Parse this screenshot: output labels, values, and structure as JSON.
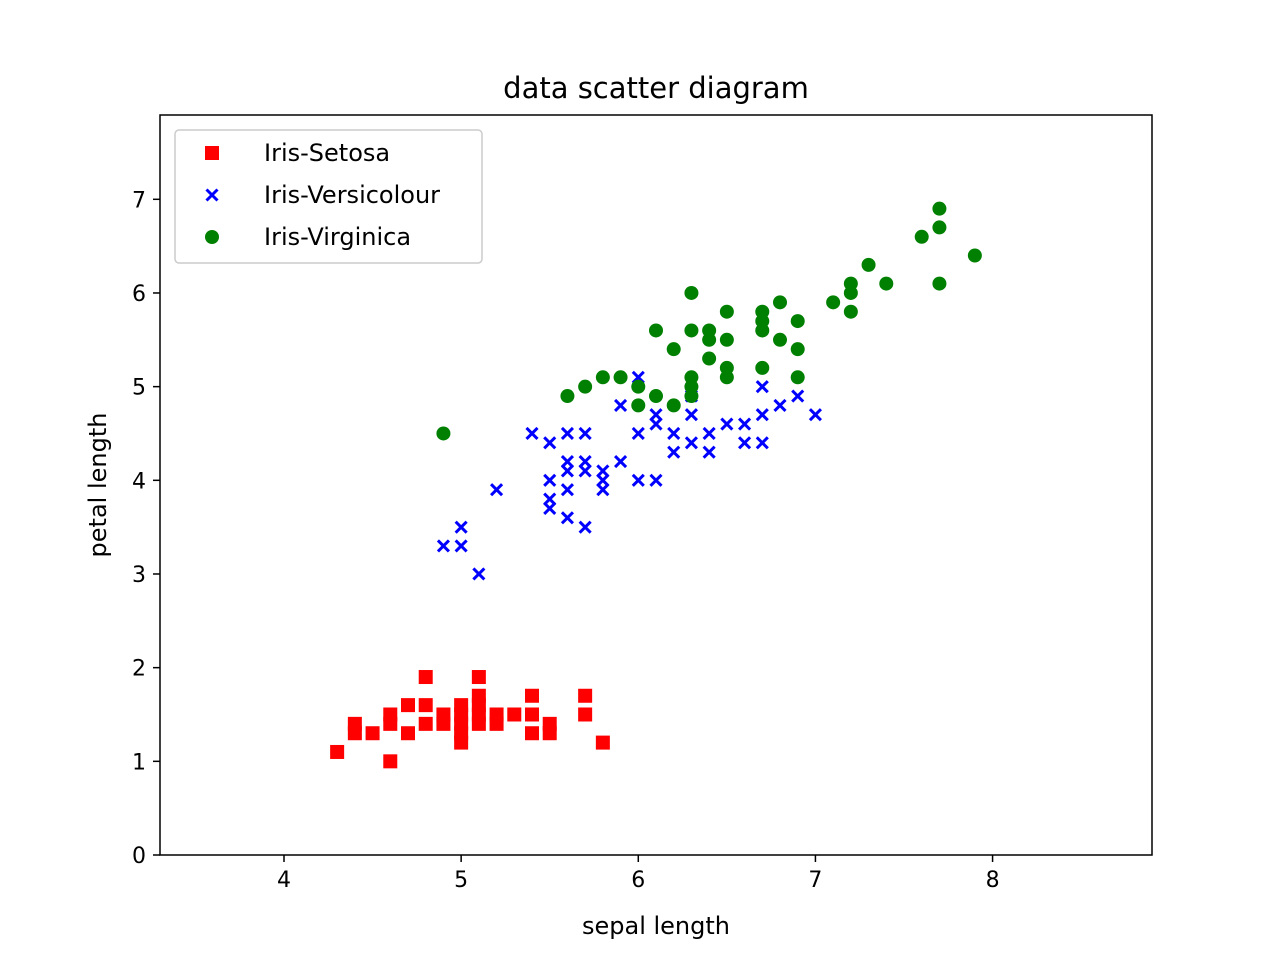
{
  "chart_data": {
    "type": "scatter",
    "title": "data scatter diagram",
    "xlabel": "sepal length",
    "ylabel": "petal length",
    "xlim": [
      3.3,
      8.9
    ],
    "ylim": [
      0,
      7.9
    ],
    "xticks": [
      4,
      5,
      6,
      7,
      8
    ],
    "yticks": [
      0,
      1,
      2,
      3,
      4,
      5,
      6,
      7
    ],
    "grid": false,
    "legend_position": "top-left",
    "series": [
      {
        "name": "Iris-Setosa",
        "marker": "square",
        "color": "#ff0000",
        "points": [
          [
            4.3,
            1.1
          ],
          [
            4.4,
            1.3
          ],
          [
            4.4,
            1.4
          ],
          [
            4.5,
            1.3
          ],
          [
            4.6,
            1.0
          ],
          [
            4.6,
            1.4
          ],
          [
            4.6,
            1.5
          ],
          [
            4.7,
            1.3
          ],
          [
            4.7,
            1.6
          ],
          [
            4.8,
            1.4
          ],
          [
            4.8,
            1.6
          ],
          [
            4.8,
            1.9
          ],
          [
            4.9,
            1.4
          ],
          [
            4.9,
            1.5
          ],
          [
            5.0,
            1.2
          ],
          [
            5.0,
            1.3
          ],
          [
            5.0,
            1.4
          ],
          [
            5.0,
            1.5
          ],
          [
            5.0,
            1.6
          ],
          [
            5.1,
            1.4
          ],
          [
            5.1,
            1.5
          ],
          [
            5.1,
            1.6
          ],
          [
            5.1,
            1.7
          ],
          [
            5.1,
            1.9
          ],
          [
            5.2,
            1.4
          ],
          [
            5.2,
            1.5
          ],
          [
            5.3,
            1.5
          ],
          [
            5.4,
            1.3
          ],
          [
            5.4,
            1.5
          ],
          [
            5.4,
            1.7
          ],
          [
            5.5,
            1.3
          ],
          [
            5.5,
            1.4
          ],
          [
            5.7,
            1.5
          ],
          [
            5.7,
            1.7
          ],
          [
            5.8,
            1.2
          ]
        ]
      },
      {
        "name": "Iris-Versicolour",
        "marker": "x",
        "color": "#0000ff",
        "points": [
          [
            4.9,
            3.3
          ],
          [
            5.0,
            3.3
          ],
          [
            5.0,
            3.5
          ],
          [
            5.1,
            3.0
          ],
          [
            5.2,
            3.9
          ],
          [
            5.4,
            4.5
          ],
          [
            5.5,
            3.7
          ],
          [
            5.5,
            3.8
          ],
          [
            5.5,
            4.0
          ],
          [
            5.5,
            4.4
          ],
          [
            5.6,
            3.6
          ],
          [
            5.6,
            3.9
          ],
          [
            5.6,
            4.1
          ],
          [
            5.6,
            4.2
          ],
          [
            5.6,
            4.5
          ],
          [
            5.7,
            3.5
          ],
          [
            5.7,
            4.1
          ],
          [
            5.7,
            4.2
          ],
          [
            5.7,
            4.5
          ],
          [
            5.8,
            3.9
          ],
          [
            5.8,
            4.0
          ],
          [
            5.8,
            4.1
          ],
          [
            5.9,
            4.2
          ],
          [
            5.9,
            4.8
          ],
          [
            6.0,
            4.0
          ],
          [
            6.0,
            4.5
          ],
          [
            6.0,
            5.1
          ],
          [
            6.1,
            4.0
          ],
          [
            6.1,
            4.6
          ],
          [
            6.1,
            4.7
          ],
          [
            6.2,
            4.3
          ],
          [
            6.2,
            4.5
          ],
          [
            6.3,
            4.4
          ],
          [
            6.3,
            4.7
          ],
          [
            6.3,
            4.9
          ],
          [
            6.4,
            4.3
          ],
          [
            6.4,
            4.5
          ],
          [
            6.5,
            4.6
          ],
          [
            6.6,
            4.4
          ],
          [
            6.6,
            4.6
          ],
          [
            6.7,
            4.4
          ],
          [
            6.7,
            4.7
          ],
          [
            6.7,
            5.0
          ],
          [
            6.8,
            4.8
          ],
          [
            6.9,
            4.9
          ],
          [
            7.0,
            4.7
          ]
        ]
      },
      {
        "name": "Iris-Virginica",
        "marker": "circle",
        "color": "#008000",
        "points": [
          [
            4.9,
            4.5
          ],
          [
            5.6,
            4.9
          ],
          [
            5.7,
            5.0
          ],
          [
            5.8,
            5.1
          ],
          [
            5.9,
            5.1
          ],
          [
            6.0,
            4.8
          ],
          [
            6.0,
            5.0
          ],
          [
            6.1,
            4.9
          ],
          [
            6.1,
            5.6
          ],
          [
            6.2,
            4.8
          ],
          [
            6.2,
            5.4
          ],
          [
            6.3,
            4.9
          ],
          [
            6.3,
            5.0
          ],
          [
            6.3,
            5.1
          ],
          [
            6.3,
            5.6
          ],
          [
            6.3,
            6.0
          ],
          [
            6.4,
            5.3
          ],
          [
            6.4,
            5.5
          ],
          [
            6.4,
            5.6
          ],
          [
            6.5,
            5.1
          ],
          [
            6.5,
            5.2
          ],
          [
            6.5,
            5.5
          ],
          [
            6.5,
            5.8
          ],
          [
            6.7,
            5.2
          ],
          [
            6.7,
            5.6
          ],
          [
            6.7,
            5.7
          ],
          [
            6.7,
            5.8
          ],
          [
            6.8,
            5.5
          ],
          [
            6.8,
            5.9
          ],
          [
            6.9,
            5.1
          ],
          [
            6.9,
            5.4
          ],
          [
            6.9,
            5.7
          ],
          [
            7.1,
            5.9
          ],
          [
            7.2,
            5.8
          ],
          [
            7.2,
            6.0
          ],
          [
            7.2,
            6.1
          ],
          [
            7.3,
            6.3
          ],
          [
            7.4,
            6.1
          ],
          [
            7.6,
            6.6
          ],
          [
            7.7,
            6.1
          ],
          [
            7.7,
            6.7
          ],
          [
            7.7,
            6.9
          ],
          [
            7.9,
            6.4
          ]
        ]
      }
    ]
  }
}
